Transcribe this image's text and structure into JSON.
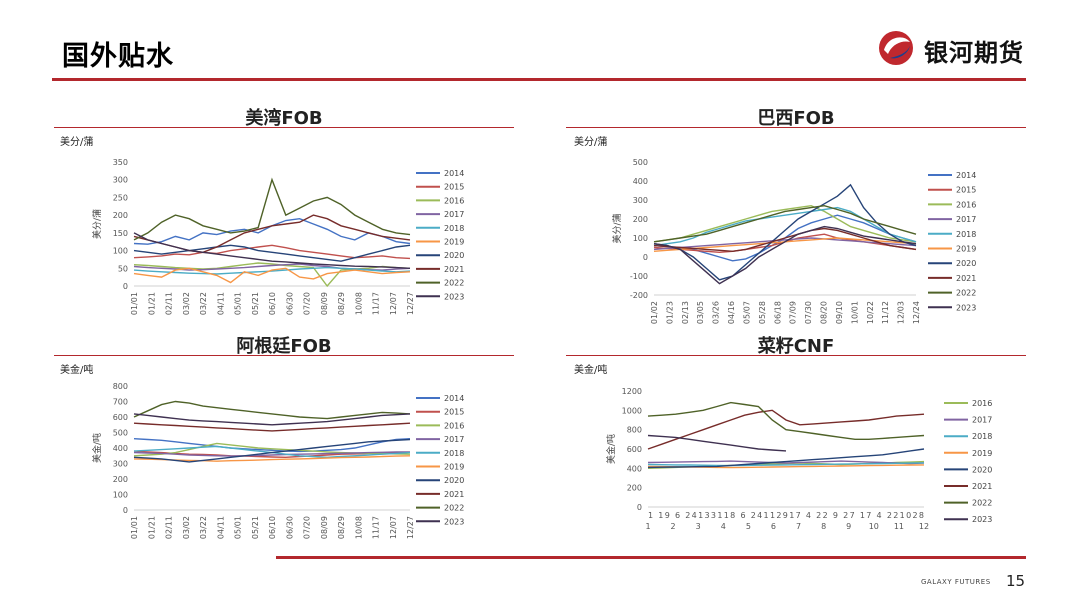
{
  "header": {
    "title": "国外贴水",
    "logo_text": "银河期货"
  },
  "footer": {
    "brand": "GALAXY FUTURES",
    "page": "15"
  },
  "colors": {
    "accent": "#b3282d",
    "palette": {
      "2014": "#4472c4",
      "2015": "#c0504d",
      "2016": "#9bbb59",
      "2017": "#8064a2",
      "2018": "#4bacc6",
      "2019": "#f79646",
      "2020": "#264478",
      "2021": "#772c2a",
      "2022": "#4f6228",
      "2023": "#3f3151"
    }
  },
  "chart_data": [
    {
      "type": "line",
      "title": "美湾FOB",
      "unit": "美分/蒲",
      "ylabel": "美分/蒲",
      "ylim": [
        0,
        350
      ],
      "yticks": [
        0,
        50,
        100,
        150,
        200,
        250,
        300,
        350
      ],
      "xticks": [
        "01/01",
        "01/21",
        "02/11",
        "03/02",
        "03/22",
        "04/11",
        "05/01",
        "05/21",
        "06/10",
        "06/30",
        "07/20",
        "08/09",
        "08/29",
        "10/08",
        "11/17",
        "12/07",
        "12/27"
      ],
      "series": [
        {
          "name": "2014",
          "values": [
            120,
            118,
            125,
            140,
            130,
            150,
            145,
            155,
            160,
            150,
            170,
            185,
            190,
            175,
            160,
            140,
            130,
            150,
            140,
            125,
            120
          ]
        },
        {
          "name": "2015",
          "values": [
            80,
            82,
            85,
            90,
            88,
            95,
            92,
            100,
            105,
            110,
            115,
            108,
            100,
            95,
            90,
            85,
            80,
            82,
            85,
            80,
            78
          ]
        },
        {
          "name": "2016",
          "values": [
            60,
            58,
            55,
            52,
            50,
            48,
            50,
            55,
            60,
            65,
            62,
            58,
            55,
            52,
            0,
            45,
            48,
            50,
            55,
            52,
            50
          ]
        },
        {
          "name": "2017",
          "values": [
            55,
            52,
            50,
            48,
            45,
            46,
            48,
            50,
            52,
            55,
            58,
            60,
            62,
            58,
            55,
            50,
            48,
            46,
            45,
            48,
            50
          ]
        },
        {
          "name": "2018",
          "values": [
            45,
            42,
            40,
            38,
            36,
            35,
            34,
            36,
            38,
            40,
            42,
            45,
            48,
            50,
            52,
            50,
            48,
            45,
            42,
            40,
            42
          ]
        },
        {
          "name": "2019",
          "values": [
            35,
            30,
            25,
            45,
            50,
            40,
            30,
            10,
            40,
            30,
            45,
            50,
            25,
            20,
            35,
            40,
            45,
            40,
            35,
            38,
            40
          ]
        },
        {
          "name": "2020",
          "values": [
            100,
            95,
            90,
            95,
            100,
            105,
            110,
            115,
            110,
            100,
            95,
            90,
            85,
            80,
            75,
            70,
            80,
            90,
            100,
            110,
            115
          ]
        },
        {
          "name": "2021",
          "values": [
            140,
            130,
            120,
            110,
            100,
            95,
            110,
            130,
            150,
            160,
            170,
            175,
            180,
            200,
            190,
            170,
            160,
            150,
            140,
            135,
            130
          ]
        },
        {
          "name": "2022",
          "values": [
            130,
            150,
            180,
            200,
            190,
            170,
            160,
            150,
            155,
            165,
            300,
            200,
            220,
            240,
            250,
            230,
            200,
            180,
            160,
            150,
            145
          ]
        },
        {
          "name": "2023",
          "values": [
            150,
            130,
            120,
            110,
            100,
            95,
            90,
            85,
            80,
            75,
            70,
            68,
            65,
            62,
            60,
            58,
            56,
            55,
            54,
            52,
            50
          ]
        }
      ]
    },
    {
      "type": "line",
      "title": "巴西FOB",
      "unit": "美分/蒲",
      "ylabel": "美分/蒲",
      "ylim": [
        -200,
        500
      ],
      "yticks": [
        -200,
        -100,
        0,
        100,
        200,
        300,
        400,
        500
      ],
      "xticks": [
        "01/02",
        "01/23",
        "02/13",
        "03/05",
        "03/26",
        "04/16",
        "05/07",
        "05/28",
        "06/18",
        "07/09",
        "07/30",
        "08/20",
        "09/10",
        "10/01",
        "10/22",
        "11/12",
        "12/03",
        "12/24"
      ],
      "series": [
        {
          "name": "2014",
          "values": [
            60,
            55,
            50,
            40,
            20,
            0,
            -20,
            -10,
            20,
            60,
            100,
            150,
            180,
            200,
            220,
            200,
            180,
            150,
            120,
            100,
            80
          ]
        },
        {
          "name": "2015",
          "values": [
            50,
            45,
            40,
            35,
            30,
            25,
            30,
            40,
            50,
            60,
            80,
            100,
            110,
            120,
            100,
            90,
            80,
            70,
            60,
            50,
            40
          ]
        },
        {
          "name": "2016",
          "values": [
            80,
            90,
            100,
            120,
            140,
            160,
            180,
            200,
            220,
            240,
            250,
            260,
            270,
            240,
            200,
            160,
            140,
            120,
            100,
            90,
            80
          ]
        },
        {
          "name": "2017",
          "values": [
            40,
            45,
            50,
            55,
            60,
            65,
            70,
            75,
            80,
            85,
            90,
            95,
            100,
            95,
            90,
            85,
            80,
            75,
            70,
            65,
            60
          ]
        },
        {
          "name": "2018",
          "values": [
            60,
            70,
            80,
            100,
            130,
            150,
            170,
            190,
            200,
            210,
            220,
            230,
            240,
            250,
            260,
            240,
            200,
            160,
            120,
            100,
            80
          ]
        },
        {
          "name": "2019",
          "values": [
            30,
            35,
            40,
            45,
            50,
            55,
            60,
            65,
            70,
            75,
            80,
            85,
            90,
            95,
            100,
            95,
            90,
            85,
            80,
            75,
            70
          ]
        },
        {
          "name": "2020",
          "values": [
            70,
            60,
            40,
            0,
            -60,
            -120,
            -100,
            -40,
            20,
            80,
            140,
            200,
            240,
            280,
            320,
            380,
            260,
            180,
            120,
            80,
            60
          ]
        },
        {
          "name": "2021",
          "values": [
            60,
            55,
            50,
            45,
            40,
            35,
            30,
            40,
            60,
            80,
            100,
            120,
            140,
            150,
            140,
            120,
            100,
            80,
            60,
            50,
            40
          ]
        },
        {
          "name": "2022",
          "values": [
            80,
            90,
            100,
            110,
            120,
            140,
            160,
            180,
            200,
            220,
            240,
            250,
            260,
            270,
            250,
            230,
            200,
            180,
            160,
            140,
            120
          ]
        },
        {
          "name": "2023",
          "values": [
            70,
            60,
            40,
            -20,
            -80,
            -140,
            -100,
            -60,
            0,
            40,
            80,
            120,
            140,
            160,
            150,
            130,
            110,
            100,
            90,
            80,
            70
          ]
        }
      ]
    },
    {
      "type": "line",
      "title": "阿根廷FOB",
      "unit": "美金/吨",
      "ylabel": "美金/吨",
      "ylim": [
        0,
        800
      ],
      "yticks": [
        0,
        100,
        200,
        300,
        400,
        500,
        600,
        700,
        800
      ],
      "xticks": [
        "01/01",
        "01/21",
        "02/11",
        "03/02",
        "03/22",
        "04/11",
        "05/01",
        "05/21",
        "06/10",
        "06/30",
        "07/20",
        "08/09",
        "08/29",
        "10/08",
        "11/17",
        "12/07",
        "12/27"
      ],
      "series": [
        {
          "name": "2014",
          "values": [
            460,
            455,
            450,
            440,
            430,
            420,
            410,
            400,
            395,
            390,
            385,
            380,
            378,
            380,
            385,
            390,
            400,
            420,
            440,
            455,
            460
          ]
        },
        {
          "name": "2015",
          "values": [
            380,
            375,
            370,
            365,
            360,
            358,
            355,
            350,
            348,
            345,
            342,
            340,
            345,
            350,
            355,
            360,
            362,
            365,
            368,
            370,
            372
          ]
        },
        {
          "name": "2016",
          "values": [
            350,
            355,
            360,
            370,
            390,
            410,
            430,
            420,
            410,
            400,
            395,
            390,
            385,
            380,
            375,
            370,
            368,
            366,
            364,
            362,
            360
          ]
        },
        {
          "name": "2017",
          "values": [
            370,
            368,
            365,
            360,
            355,
            352,
            350,
            348,
            350,
            352,
            355,
            358,
            360,
            362,
            364,
            366,
            368,
            370,
            372,
            374,
            375
          ]
        },
        {
          "name": "2018",
          "values": [
            380,
            385,
            390,
            395,
            400,
            405,
            410,
            400,
            390,
            380,
            370,
            360,
            350,
            345,
            340,
            345,
            350,
            355,
            360,
            365,
            370
          ]
        },
        {
          "name": "2019",
          "values": [
            330,
            328,
            325,
            322,
            320,
            318,
            315,
            318,
            320,
            322,
            325,
            328,
            330,
            332,
            335,
            338,
            340,
            342,
            345,
            348,
            350
          ]
        },
        {
          "name": "2020",
          "values": [
            340,
            335,
            330,
            320,
            310,
            320,
            330,
            340,
            350,
            360,
            370,
            380,
            390,
            400,
            410,
            420,
            430,
            440,
            445,
            450,
            455
          ]
        },
        {
          "name": "2021",
          "values": [
            560,
            555,
            550,
            545,
            540,
            535,
            530,
            525,
            520,
            515,
            510,
            515,
            520,
            525,
            530,
            535,
            540,
            545,
            550,
            555,
            560
          ]
        },
        {
          "name": "2022",
          "values": [
            600,
            640,
            680,
            700,
            690,
            670,
            660,
            650,
            640,
            630,
            620,
            610,
            600,
            595,
            590,
            600,
            610,
            620,
            630,
            625,
            620
          ]
        },
        {
          "name": "2023",
          "values": [
            620,
            610,
            600,
            590,
            580,
            575,
            570,
            565,
            560,
            555,
            550,
            555,
            560,
            565,
            570,
            580,
            590,
            600,
            610,
            615,
            620
          ]
        }
      ]
    },
    {
      "type": "line",
      "title": "菜籽CNF",
      "unit": "美金/吨",
      "ylabel": "美金/吨",
      "ylim": [
        0,
        1200
      ],
      "yticks": [
        0,
        200,
        400,
        600,
        800,
        1000,
        1200
      ],
      "xticks": [
        "1",
        "2",
        "3",
        "4",
        "5",
        "6",
        "7",
        "8",
        "9",
        "10",
        "11",
        "12"
      ],
      "xsubticks": "1 19 6 24133118 6 24112917 4 22 9 27 17 4 221028",
      "series": [
        {
          "name": "2016",
          "values": [
            400,
            405,
            410,
            415,
            420,
            425,
            430,
            435,
            440,
            445,
            450,
            455,
            450,
            445,
            440,
            445,
            450,
            455,
            460,
            465,
            470
          ]
        },
        {
          "name": "2017",
          "values": [
            460,
            462,
            465,
            468,
            470,
            472,
            475,
            470,
            465,
            460,
            455,
            460,
            465,
            470,
            475,
            470,
            465,
            460,
            455,
            450,
            455
          ]
        },
        {
          "name": "2018",
          "values": [
            440,
            438,
            436,
            434,
            432,
            430,
            428,
            430,
            432,
            434,
            436,
            438,
            440,
            442,
            444,
            446,
            448,
            450,
            452,
            454,
            456
          ]
        },
        {
          "name": "2019",
          "values": [
            420,
            418,
            416,
            414,
            412,
            410,
            408,
            410,
            412,
            414,
            416,
            418,
            420,
            422,
            424,
            426,
            428,
            430,
            432,
            434,
            436
          ]
        },
        {
          "name": "2020",
          "values": [
            410,
            412,
            414,
            416,
            418,
            420,
            430,
            440,
            450,
            460,
            470,
            480,
            490,
            500,
            510,
            520,
            530,
            540,
            560,
            580,
            600
          ]
        },
        {
          "name": "2021",
          "values": [
            600,
            650,
            700,
            750,
            800,
            850,
            900,
            950,
            980,
            1000,
            900,
            850,
            860,
            870,
            880,
            890,
            900,
            920,
            940,
            950,
            960
          ]
        },
        {
          "name": "2022",
          "values": [
            940,
            950,
            960,
            980,
            1000,
            1040,
            1080,
            1060,
            1040,
            900,
            800,
            780,
            760,
            740,
            720,
            700,
            700,
            710,
            720,
            730,
            740
          ]
        },
        {
          "name": "2023",
          "values": [
            740,
            730,
            720,
            700,
            680,
            660,
            640,
            620,
            600,
            590,
            580,
            null,
            null,
            null,
            null,
            null,
            null,
            null,
            null,
            null,
            null
          ]
        }
      ]
    }
  ]
}
